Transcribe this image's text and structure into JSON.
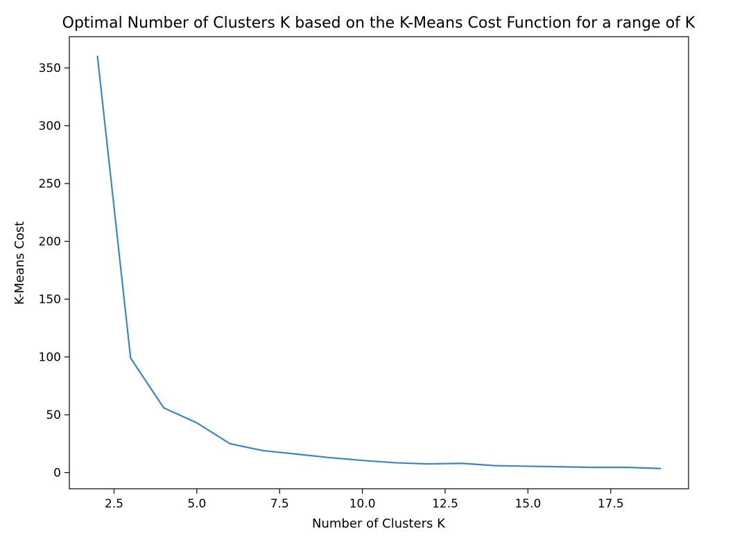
{
  "chart_data": {
    "type": "line",
    "title": "Optimal Number of Clusters K based on the K-Means Cost Function for a range of K",
    "xlabel": "Number of Clusters K",
    "ylabel": "K-Means Cost",
    "xlim": [
      1.15,
      19.85
    ],
    "ylim": [
      -14,
      377
    ],
    "xticks": [
      2.5,
      5.0,
      7.5,
      10.0,
      12.5,
      15.0,
      17.5
    ],
    "xtick_labels": [
      "2.5",
      "5.0",
      "7.5",
      "10.0",
      "12.5",
      "15.0",
      "17.5"
    ],
    "yticks": [
      0,
      50,
      100,
      150,
      200,
      250,
      300,
      350
    ],
    "ytick_labels": [
      "0",
      "50",
      "100",
      "150",
      "200",
      "250",
      "300",
      "350"
    ],
    "grid": false,
    "series": [
      {
        "name": "K-Means Cost",
        "color": "#3a86c4",
        "x": [
          2,
          3,
          4,
          5,
          6,
          7,
          8,
          9,
          10,
          11,
          12,
          13,
          14,
          15,
          16,
          17,
          18,
          19
        ],
        "y": [
          360,
          99,
          56,
          43,
          25,
          19,
          16,
          13,
          10.5,
          8.5,
          7.5,
          8,
          6,
          5.5,
          5,
          4.5,
          4.5,
          3.5
        ]
      }
    ]
  }
}
